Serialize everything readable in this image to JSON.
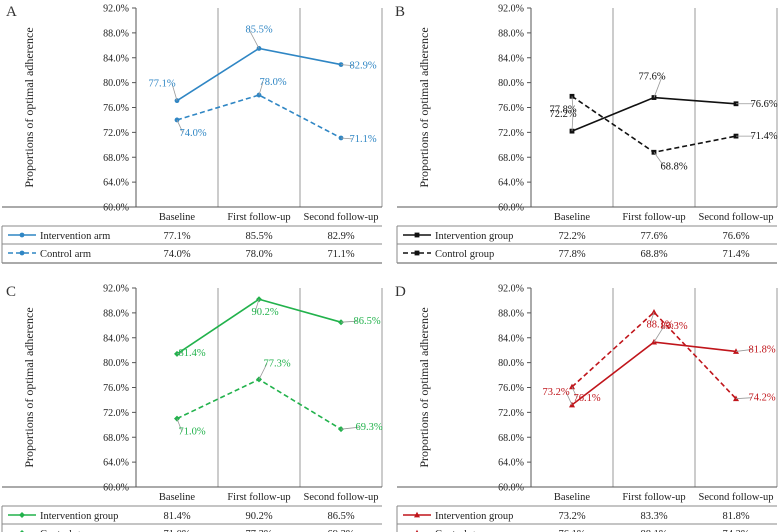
{
  "chart_data": [
    {
      "panel_label": "A",
      "type": "line",
      "color": "#2f86c4",
      "marker": "circle",
      "categories": [
        "Baseline",
        "First follow-up",
        "Second follow-up"
      ],
      "ylabel": "Proportions of optimal adherence",
      "ylim": [
        60,
        92
      ],
      "yticks": [
        "60.0%",
        "64.0%",
        "68.0%",
        "72.0%",
        "76.0%",
        "80.0%",
        "84.0%",
        "88.0%",
        "92.0%"
      ],
      "series": [
        {
          "name": "Intervention arm",
          "dash": "solid",
          "values": [
            77.1,
            85.5,
            82.9
          ],
          "labels": [
            "77.1%",
            "85.5%",
            "82.9%"
          ]
        },
        {
          "name": "Control arm",
          "dash": "dashed",
          "values": [
            74.0,
            78.0,
            71.1
          ],
          "labels": [
            "74.0%",
            "78.0%",
            "71.1%"
          ]
        }
      ]
    },
    {
      "panel_label": "B",
      "type": "line",
      "color": "#111111",
      "marker": "square",
      "categories": [
        "Baseline",
        "First follow-up",
        "Second follow-up"
      ],
      "ylabel": "Proportions of optimal adherence",
      "ylim": [
        60,
        92
      ],
      "yticks": [
        "60.0%",
        "64.0%",
        "68.0%",
        "72.0%",
        "76.0%",
        "80.0%",
        "84.0%",
        "88.0%",
        "92.0%"
      ],
      "series": [
        {
          "name": "Intervention group",
          "dash": "solid",
          "values": [
            72.2,
            77.6,
            76.6
          ],
          "labels": [
            "72.2%",
            "77.6%",
            "76.6%"
          ]
        },
        {
          "name": "Control group",
          "dash": "dashed",
          "values": [
            77.8,
            68.8,
            71.4
          ],
          "labels": [
            "77.8%",
            "68.8%",
            "71.4%"
          ]
        }
      ]
    },
    {
      "panel_label": "C",
      "type": "line",
      "color": "#22b24c",
      "marker": "diamond",
      "categories": [
        "Baseline",
        "First follow-up",
        "Second follow-up"
      ],
      "ylabel": "Proportions of optimal adherence",
      "ylim": [
        60,
        92
      ],
      "yticks": [
        "60.0%",
        "64.0%",
        "68.0%",
        "72.0%",
        "76.0%",
        "80.0%",
        "84.0%",
        "88.0%",
        "92.0%"
      ],
      "series": [
        {
          "name": "Intervention group",
          "dash": "solid",
          "values": [
            81.4,
            90.2,
            86.5
          ],
          "labels": [
            "81.4%",
            "90.2%",
            "86.5%"
          ]
        },
        {
          "name": "Control group",
          "dash": "dashed",
          "values": [
            71.0,
            77.3,
            69.3
          ],
          "labels": [
            "71.0%",
            "77.3%",
            "69.3%"
          ]
        }
      ]
    },
    {
      "panel_label": "D",
      "type": "line",
      "color": "#c0151b",
      "marker": "triangle",
      "categories": [
        "Baseline",
        "First follow-up",
        "Second follow-up"
      ],
      "ylabel": "Proportions of optimal adherence",
      "ylim": [
        60,
        92
      ],
      "yticks": [
        "60.0%",
        "64.0%",
        "68.0%",
        "72.0%",
        "76.0%",
        "80.0%",
        "84.0%",
        "88.0%",
        "92.0%"
      ],
      "series": [
        {
          "name": "Intervention group",
          "dash": "solid",
          "values": [
            73.2,
            83.3,
            81.8
          ],
          "labels": [
            "73.2%",
            "83.3%",
            "81.8%"
          ]
        },
        {
          "name": "Control group",
          "dash": "dashed",
          "values": [
            76.1,
            88.1,
            74.2
          ],
          "labels": [
            "76.1%",
            "88.1%",
            "74.2%"
          ]
        }
      ]
    }
  ]
}
